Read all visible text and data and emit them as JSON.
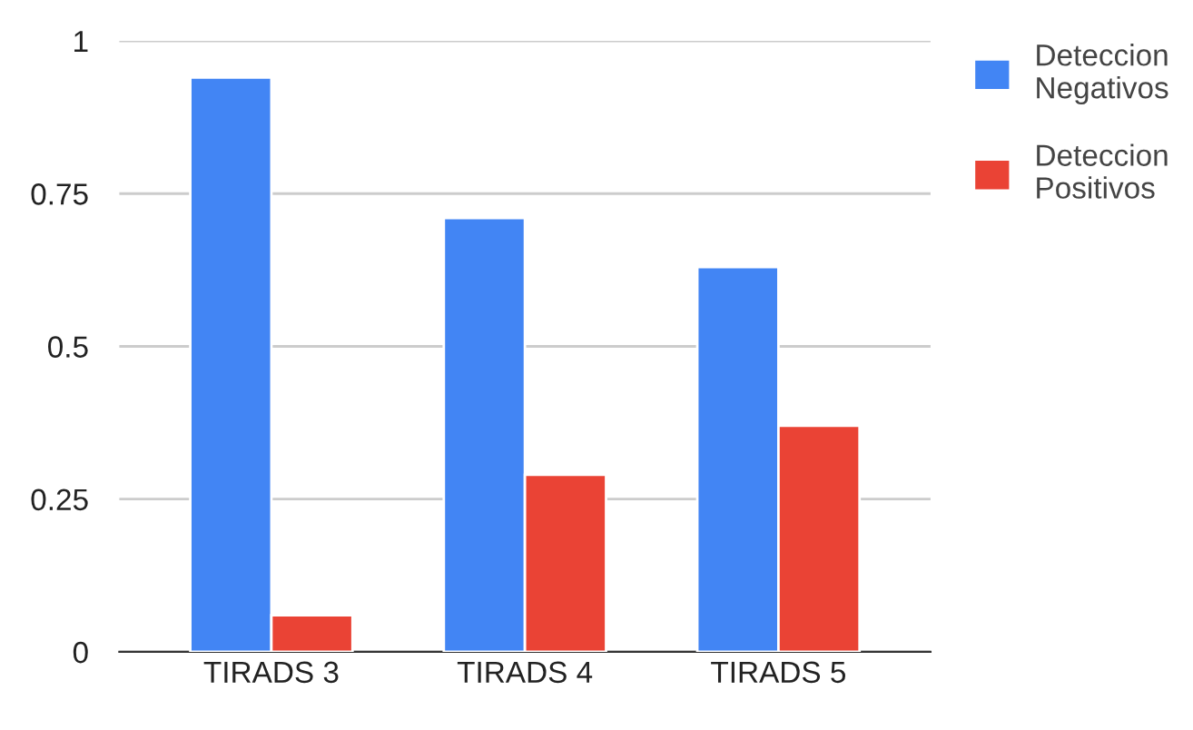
{
  "chart_data": {
    "type": "bar",
    "categories": [
      "TIRADS 3",
      "TIRADS 4",
      "TIRADS 5"
    ],
    "series": [
      {
        "name": "Deteccion\nNegativos",
        "color": "#4285f4",
        "values": [
          0.94,
          0.71,
          0.63
        ]
      },
      {
        "name": "Deteccion\nPositivos",
        "color": "#ea4335",
        "values": [
          0.06,
          0.29,
          0.37
        ]
      }
    ],
    "ylim": [
      0,
      1
    ],
    "yticks": [
      0,
      {
        "value": 0.25,
        "label": "0.25"
      },
      {
        "value": 0.5,
        "label": "0.5"
      },
      {
        "value": 0.75,
        "label": "0.75"
      },
      1
    ],
    "grid": "y",
    "legend": "top right"
  }
}
